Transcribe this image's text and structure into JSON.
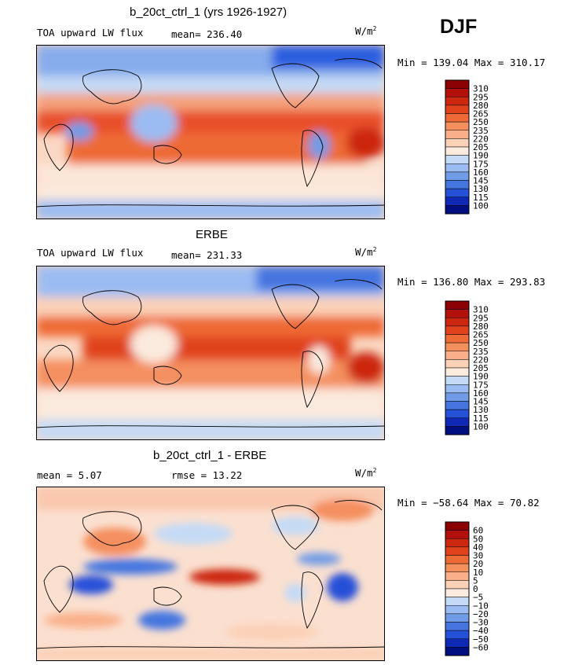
{
  "season": "DJF",
  "panels": [
    {
      "title": "b_20ct_ctrl_1 (yrs 1926-1927)",
      "left_label": "TOA upward LW flux",
      "mid_label": "mean= 236.40",
      "units": "W/m",
      "units_sup": "2",
      "minmax": "Min = 139.04 Max = 310.17",
      "colorbar": {
        "labels": [
          "310",
          "295",
          "280",
          "265",
          "250",
          "235",
          "220",
          "205",
          "190",
          "175",
          "160",
          "145",
          "130",
          "115",
          "100"
        ],
        "colors": [
          "#8b0000",
          "#b2100a",
          "#cc2810",
          "#e0421c",
          "#ee6a36",
          "#f48f5e",
          "#f9b08a",
          "#fbd2b8",
          "#fbeade",
          "#c5daf5",
          "#9bbcf2",
          "#709be6",
          "#4576e0",
          "#2550d8",
          "#0f28b5",
          "#000f80"
        ]
      }
    },
    {
      "title": "ERBE",
      "left_label": "TOA upward LW flux",
      "mid_label": "mean= 231.33",
      "units": "W/m",
      "units_sup": "2",
      "minmax": "Min = 136.80 Max = 293.83",
      "colorbar": {
        "labels": [
          "310",
          "295",
          "280",
          "265",
          "250",
          "235",
          "220",
          "205",
          "190",
          "175",
          "160",
          "145",
          "130",
          "115",
          "100"
        ],
        "colors": [
          "#8b0000",
          "#b2100a",
          "#cc2810",
          "#e0421c",
          "#ee6a36",
          "#f48f5e",
          "#f9b08a",
          "#fbd2b8",
          "#fbeade",
          "#c5daf5",
          "#9bbcf2",
          "#709be6",
          "#4576e0",
          "#2550d8",
          "#0f28b5",
          "#000f80"
        ]
      }
    },
    {
      "title": "b_20ct_ctrl_1 - ERBE",
      "left_label": "mean =    5.07",
      "mid_label": "rmse =   13.22",
      "units": "W/m",
      "units_sup": "2",
      "minmax": "Min = −58.64 Max =  70.82",
      "colorbar": {
        "labels": [
          "60",
          "50",
          "40",
          "30",
          "20",
          "10",
          "5",
          "0",
          "−5",
          "−10",
          "−20",
          "−30",
          "−40",
          "−50",
          "−60"
        ],
        "colors": [
          "#8b0000",
          "#b2100a",
          "#cc2810",
          "#e0421c",
          "#ee6a36",
          "#f48f5e",
          "#f9b08a",
          "#fbd2b8",
          "#fbeade",
          "#c5daf5",
          "#9bbcf2",
          "#709be6",
          "#4576e0",
          "#2550d8",
          "#0f28b5",
          "#000f80"
        ]
      }
    }
  ]
}
